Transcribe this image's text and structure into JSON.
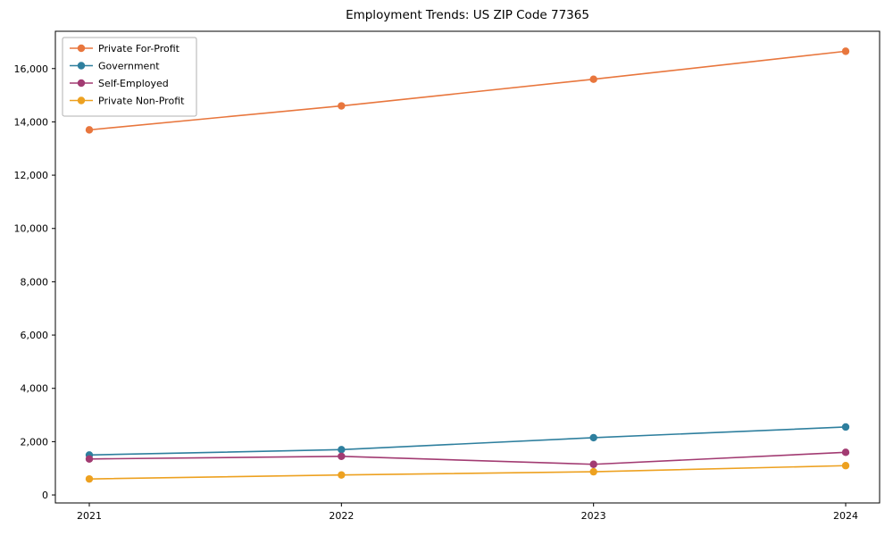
{
  "chart_data": {
    "type": "line",
    "title": "Employment Trends: US ZIP Code 77365",
    "xlabel": "",
    "ylabel": "",
    "x": [
      2021,
      2022,
      2023,
      2024
    ],
    "x_tick_labels": [
      "2021",
      "2022",
      "2023",
      "2024"
    ],
    "y_ticks": [
      0,
      2000,
      4000,
      6000,
      8000,
      10000,
      12000,
      14000,
      16000
    ],
    "y_tick_labels": [
      "0",
      "2,000",
      "4,000",
      "6,000",
      "8,000",
      "10,000",
      "12,000",
      "14,000",
      "16,000"
    ],
    "ylim": [
      -300,
      17400
    ],
    "grid": false,
    "legend_position": "upper-left",
    "marker": "circle",
    "series": [
      {
        "name": "Private For-Profit",
        "color": "#e8763d",
        "values": [
          13700,
          14600,
          15600,
          16650
        ]
      },
      {
        "name": "Government",
        "color": "#2e7f9e",
        "values": [
          1500,
          1700,
          2150,
          2550
        ]
      },
      {
        "name": "Self-Employed",
        "color": "#a23b72",
        "values": [
          1350,
          1450,
          1150,
          1600
        ]
      },
      {
        "name": "Private Non-Profit",
        "color": "#eda120",
        "values": [
          600,
          750,
          870,
          1100
        ]
      }
    ]
  },
  "colors": {
    "axis": "#000000",
    "background": "#ffffff",
    "legend_border": "#b0b0b0"
  }
}
